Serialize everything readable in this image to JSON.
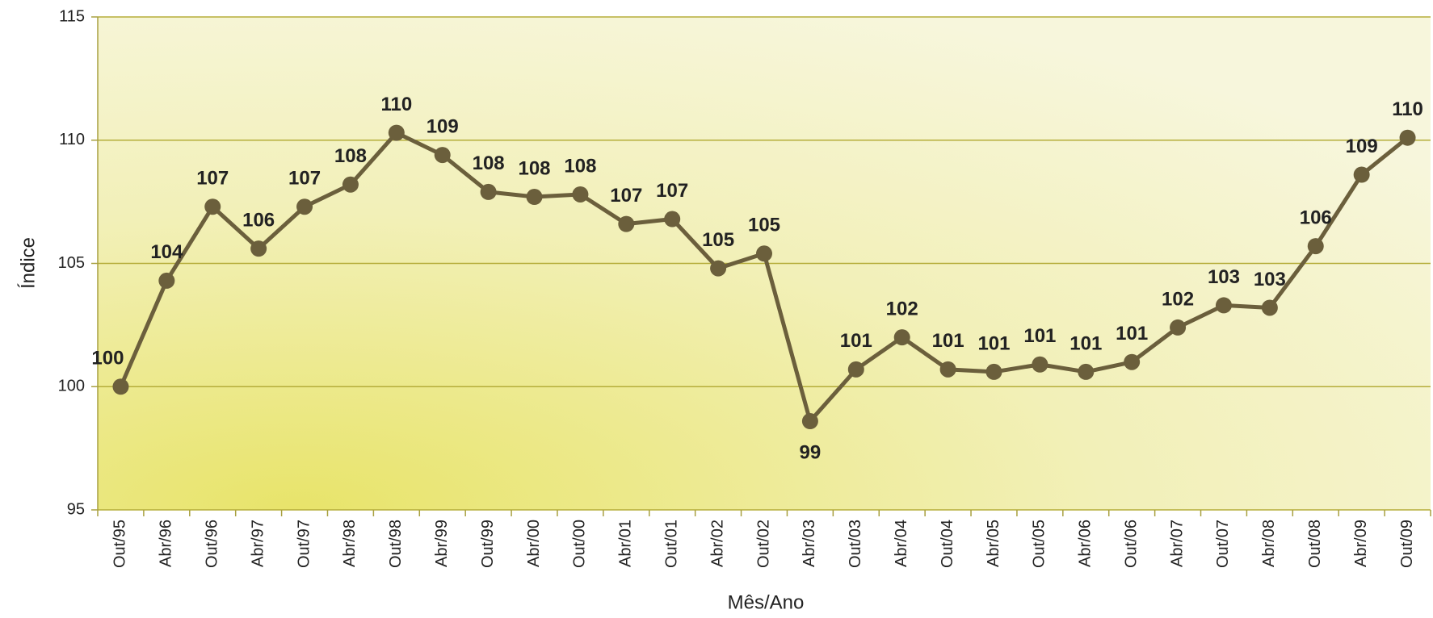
{
  "chart_data": {
    "type": "line",
    "xlabel": "Mês/Ano",
    "ylabel": "Índice",
    "categories": [
      "Out/95",
      "Abr/96",
      "Out/96",
      "Abr/97",
      "Out/97",
      "Abr/98",
      "Out/98",
      "Abr/99",
      "Out/99",
      "Abr/00",
      "Out/00",
      "Abr/01",
      "Out/01",
      "Abr/02",
      "Out/02",
      "Abr/03",
      "Out/03",
      "Abr/04",
      "Out/04",
      "Abr/05",
      "Out/05",
      "Abr/06",
      "Out/06",
      "Abr/07",
      "Out/07",
      "Abr/08",
      "Out/08",
      "Abr/09",
      "Out/09"
    ],
    "series": [
      {
        "color": "#6b5f3c",
        "values": [
          100.0,
          104.3,
          107.3,
          105.6,
          107.3,
          108.2,
          110.3,
          109.4,
          107.9,
          107.7,
          107.8,
          106.6,
          106.8,
          104.8,
          105.4,
          98.6,
          100.7,
          102.0,
          100.7,
          100.6,
          100.9,
          100.6,
          101.0,
          102.4,
          103.3,
          103.2,
          105.7,
          108.6,
          110.1
        ],
        "value_labels": [
          "100",
          "104",
          "107",
          "106",
          "107",
          "108",
          "110",
          "109",
          "108",
          "108",
          "108",
          "107",
          "107",
          "105",
          "105",
          "99",
          "101",
          "102",
          "101",
          "101",
          "101",
          "101",
          "101",
          "102",
          "103",
          "103",
          "106",
          "109",
          "110"
        ]
      }
    ],
    "ylim": [
      95,
      115
    ],
    "yticks": [
      95,
      100,
      105,
      110,
      115
    ],
    "grid": true
  }
}
